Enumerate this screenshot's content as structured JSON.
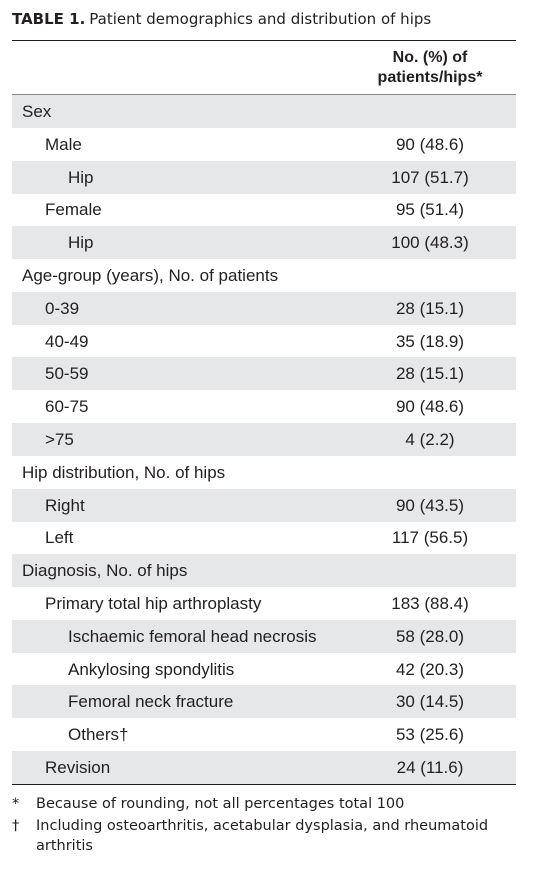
{
  "title": {
    "label": "TABLE 1.",
    "text": "Patient demographics and distribution of hips"
  },
  "header": {
    "column": [
      "No. (%) of",
      "patients/hips*"
    ]
  },
  "sections": [
    {
      "label": "Sex",
      "items": [
        {
          "label": "Male",
          "value": "90 (48.6)",
          "subitems": [
            {
              "label": "Hip",
              "value": "107 (51.7)"
            }
          ]
        },
        {
          "label": "Female",
          "value": "95 (51.4)",
          "subitems": [
            {
              "label": "Hip",
              "value": "100 (48.3)"
            }
          ]
        }
      ]
    },
    {
      "label": "Age-group (years), No. of patients",
      "items": [
        {
          "label": "0-39",
          "value": "28 (15.1)"
        },
        {
          "label": "40-49",
          "value": "35 (18.9)"
        },
        {
          "label": "50-59",
          "value": "28 (15.1)"
        },
        {
          "label": "60-75",
          "value": "90 (48.6)"
        },
        {
          "label": ">75",
          "value": "4 (2.2)"
        }
      ]
    },
    {
      "label": "Hip distribution, No. of hips",
      "items": [
        {
          "label": "Right",
          "value": "90 (43.5)"
        },
        {
          "label": "Left",
          "value": "117 (56.5)"
        }
      ]
    },
    {
      "label": "Diagnosis, No. of hips",
      "items": [
        {
          "label": "Primary total hip arthroplasty",
          "value": "183 (88.4)",
          "subitems": [
            {
              "label": "Ischaemic femoral head necrosis",
              "value": "58 (28.0)"
            },
            {
              "label": "Ankylosing spondylitis",
              "value": "42 (20.3)"
            },
            {
              "label": "Femoral neck fracture",
              "value": "30 (14.5)"
            },
            {
              "label": "Others†",
              "value": "53 (25.6)"
            }
          ]
        },
        {
          "label": "Revision",
          "value": "24 (11.6)"
        }
      ]
    }
  ],
  "footnotes": [
    {
      "marker": "*",
      "text": "Because of rounding, not all percentages total 100"
    },
    {
      "marker": "†",
      "text": "Including osteoarthritis, acetabular dysplasia, and rheumatoid arthritis"
    }
  ]
}
